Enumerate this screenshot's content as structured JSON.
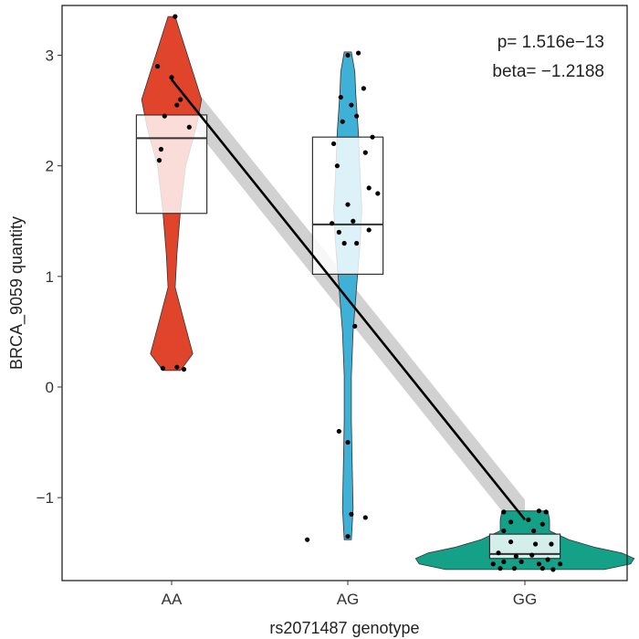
{
  "chart_data": {
    "type": "violin-box-scatter",
    "xlabel": "rs2071487 genotype",
    "ylabel": "BRCA_9059 quantity",
    "categories": [
      "AA",
      "AG",
      "GG"
    ],
    "ylim": [
      -1.75,
      3.45
    ],
    "yticks": [
      -1,
      0,
      1,
      2,
      3
    ],
    "grid": false,
    "annotations": [
      "p= 1.516e−13",
      "beta= −1.2188"
    ],
    "colors": {
      "AA": "#e0452b",
      "AG": "#3fb0d6",
      "GG": "#15a088"
    },
    "groups": [
      {
        "category": "AA",
        "box": {
          "q1": 1.57,
          "median": 2.25,
          "q3": 2.46,
          "whisker_low": 1.57,
          "whisker_high": 2.46
        },
        "violin": [
          [
            0.15,
            0.05
          ],
          [
            0.3,
            0.12
          ],
          [
            0.6,
            0.07
          ],
          [
            0.9,
            0.02
          ],
          [
            1.2,
            0.03
          ],
          [
            1.6,
            0.05
          ],
          [
            2.0,
            0.08
          ],
          [
            2.35,
            0.14
          ],
          [
            2.6,
            0.17
          ],
          [
            2.85,
            0.12
          ],
          [
            3.1,
            0.07
          ],
          [
            3.35,
            0.02
          ]
        ],
        "points": [
          [
            0.02,
            3.35
          ],
          [
            -0.08,
            2.9
          ],
          [
            0.0,
            2.8
          ],
          [
            0.05,
            2.6
          ],
          [
            0.03,
            2.55
          ],
          [
            -0.04,
            2.45
          ],
          [
            0.1,
            2.35
          ],
          [
            -0.06,
            2.15
          ],
          [
            -0.07,
            2.05
          ],
          [
            0.03,
            0.18
          ],
          [
            -0.05,
            0.17
          ],
          [
            0.07,
            0.16
          ]
        ]
      },
      {
        "category": "AG",
        "box": {
          "q1": 1.02,
          "median": 1.47,
          "q3": 2.26,
          "whisker_low": 1.02,
          "whisker_high": 2.26
        },
        "violin": [
          [
            -1.38,
            0.02
          ],
          [
            -1.1,
            0.03
          ],
          [
            -0.7,
            0.025
          ],
          [
            -0.3,
            0.02
          ],
          [
            0.1,
            0.02
          ],
          [
            0.5,
            0.03
          ],
          [
            0.9,
            0.05
          ],
          [
            1.3,
            0.07
          ],
          [
            1.6,
            0.08
          ],
          [
            1.9,
            0.07
          ],
          [
            2.3,
            0.06
          ],
          [
            2.65,
            0.045
          ],
          [
            2.85,
            0.04
          ],
          [
            3.03,
            0.02
          ]
        ],
        "points": [
          [
            0.06,
            3.02
          ],
          [
            0.0,
            3.0
          ],
          [
            -0.04,
            2.62
          ],
          [
            0.02,
            2.55
          ],
          [
            0.09,
            2.7
          ],
          [
            0.05,
            2.45
          ],
          [
            -0.03,
            2.4
          ],
          [
            0.14,
            2.26
          ],
          [
            -0.08,
            2.2
          ],
          [
            0.1,
            2.12
          ],
          [
            -0.06,
            2.0
          ],
          [
            0.12,
            1.8
          ],
          [
            0.17,
            1.75
          ],
          [
            0.0,
            1.65
          ],
          [
            -0.09,
            1.48
          ],
          [
            0.03,
            1.5
          ],
          [
            -0.05,
            1.4
          ],
          [
            0.05,
            1.3
          ],
          [
            -0.02,
            1.3
          ],
          [
            0.12,
            1.42
          ],
          [
            0.04,
            0.55
          ],
          [
            -0.05,
            -0.4
          ],
          [
            0.0,
            -0.5
          ],
          [
            -0.23,
            -1.38
          ],
          [
            0.0,
            -1.35
          ],
          [
            0.1,
            -1.18
          ],
          [
            0.02,
            -1.15
          ]
        ]
      },
      {
        "category": "GG",
        "box": {
          "q1": -1.55,
          "median": -1.51,
          "q3": -1.33,
          "whisker_low": -1.55,
          "whisker_high": -1.33
        },
        "violin": [
          [
            -1.65,
            0.45
          ],
          [
            -1.6,
            0.6
          ],
          [
            -1.55,
            0.62
          ],
          [
            -1.5,
            0.55
          ],
          [
            -1.45,
            0.4
          ],
          [
            -1.38,
            0.25
          ],
          [
            -1.3,
            0.14
          ],
          [
            -1.2,
            0.14
          ],
          [
            -1.12,
            0.13
          ]
        ],
        "points": [
          [
            -0.12,
            -1.13
          ],
          [
            0.08,
            -1.12
          ],
          [
            0.12,
            -1.13
          ],
          [
            0.02,
            -1.2
          ],
          [
            -0.08,
            -1.22
          ],
          [
            0.1,
            -1.24
          ],
          [
            -0.12,
            -1.3
          ],
          [
            0.05,
            -1.3
          ],
          [
            -0.08,
            -1.4
          ],
          [
            0.06,
            -1.42
          ],
          [
            0.15,
            -1.42
          ],
          [
            -0.15,
            -1.5
          ],
          [
            -0.05,
            -1.53
          ],
          [
            0.04,
            -1.52
          ],
          [
            0.13,
            -1.56
          ],
          [
            -0.12,
            -1.58
          ],
          [
            -0.02,
            -1.58
          ],
          [
            0.08,
            -1.6
          ],
          [
            -0.18,
            -1.6
          ],
          [
            0.2,
            -1.6
          ],
          [
            -0.06,
            -1.64
          ],
          [
            0.1,
            -1.64
          ],
          [
            -0.14,
            -1.64
          ],
          [
            0.16,
            -1.65
          ]
        ]
      }
    ],
    "regression": {
      "from": [
        "AA",
        2.78
      ],
      "to": [
        "GG",
        -1.2
      ],
      "ci_halfwidth": 0.18
    }
  }
}
